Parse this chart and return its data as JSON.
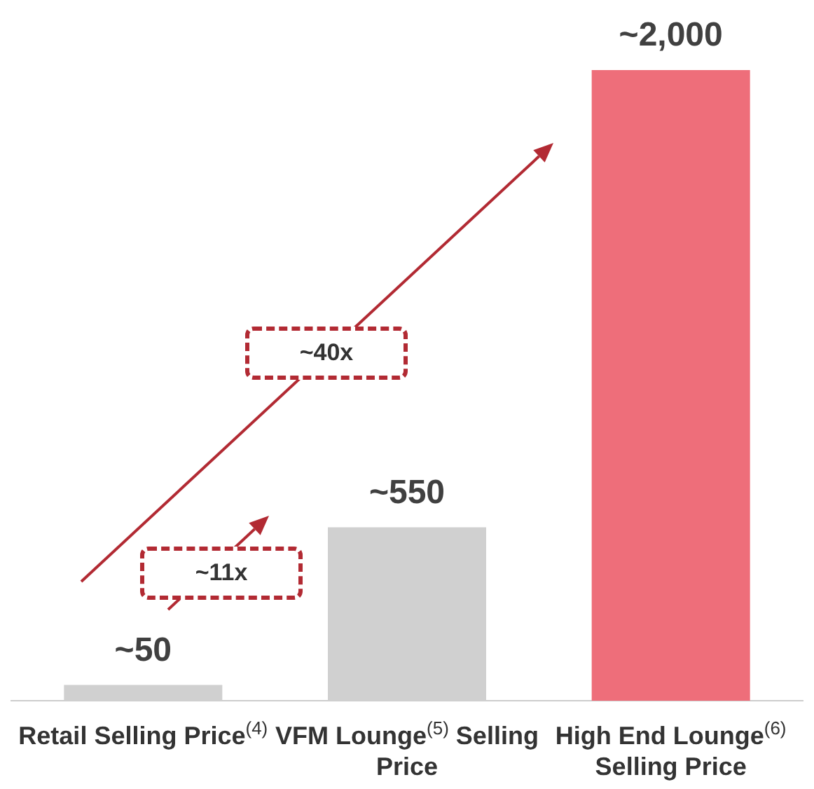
{
  "chart_data": {
    "type": "bar",
    "categories": [
      "Retail Selling Price$^{(4)}$",
      "VFM Lounge$^{(5)}$ Selling Price",
      "High End Lounge$^{(6)}$ Selling Price"
    ],
    "values": [
      50,
      550,
      2000
    ],
    "colors": [
      "#d0d0d0",
      "#d0d0d0",
      "#ee6e7a"
    ],
    "value_labels": [
      "~50",
      "~550",
      "~2,000"
    ],
    "annotations": [
      "~11x",
      "~40x"
    ],
    "grid": false,
    "legend": false
  }
}
